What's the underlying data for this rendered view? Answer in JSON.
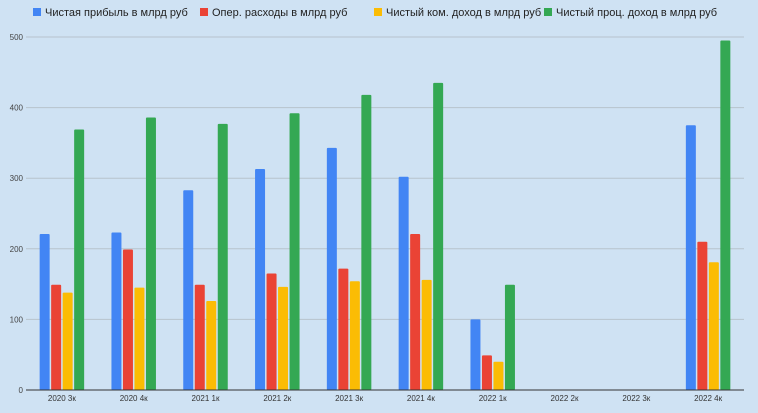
{
  "chart_data": {
    "type": "bar",
    "title": "",
    "xlabel": "",
    "ylabel": "",
    "ylim": [
      0,
      500
    ],
    "yticks": [
      0,
      100,
      200,
      300,
      400,
      500
    ],
    "grid": true,
    "legend_position": "top",
    "categories": [
      "2020 3к",
      "2020 4к",
      "2021 1к",
      "2021 2к",
      "2021 3к",
      "2021 4к",
      "2022 1к",
      "2022 2к",
      "2022 3к",
      "2022 4к"
    ],
    "series": [
      {
        "name": "Чистая прибыль в млрд руб",
        "color": "#4285f4",
        "values": [
          221,
          223,
          283,
          313,
          343,
          302,
          100,
          null,
          null,
          375
        ]
      },
      {
        "name": "Опер. расходы в млрд руб",
        "color": "#ea4335",
        "values": [
          149,
          199,
          149,
          165,
          172,
          221,
          49,
          null,
          null,
          210
        ]
      },
      {
        "name": "Чистый ком. доход в млрд руб",
        "color": "#fbbc04",
        "values": [
          138,
          145,
          126,
          146,
          154,
          156,
          40,
          null,
          null,
          181
        ]
      },
      {
        "name": "Чистый проц. доход в млрд руб",
        "color": "#34a853",
        "values": [
          369,
          386,
          377,
          392,
          418,
          435,
          149,
          null,
          null,
          495
        ]
      }
    ]
  }
}
